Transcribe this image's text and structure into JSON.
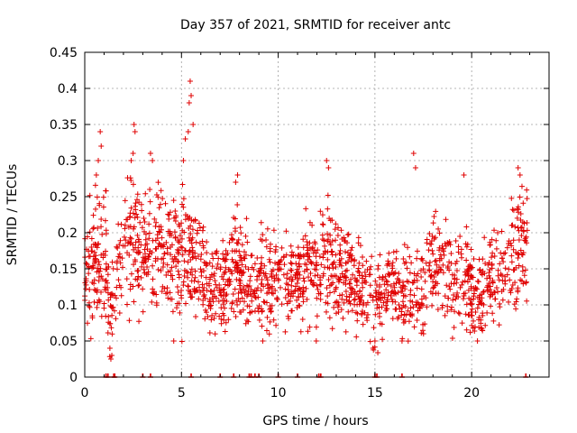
{
  "chart_data": {
    "type": "scatter",
    "title": "Day 357 of 2021, SRMTID for receiver antc",
    "xlabel": "GPS time / hours",
    "ylabel": "SRMTID / TECUs",
    "xlim": [
      0,
      24
    ],
    "ylim": [
      0,
      0.45
    ],
    "x_ticks": [
      0,
      5,
      10,
      15,
      20
    ],
    "x_tick_labels": [
      "0",
      "5",
      "10",
      "15",
      "20"
    ],
    "y_ticks": [
      0,
      0.05,
      0.1,
      0.15,
      0.2,
      0.25,
      0.3,
      0.35,
      0.4,
      0.45
    ],
    "y_tick_labels": [
      "0",
      "0.05",
      "0.1",
      "0.15",
      "0.2",
      "0.25",
      "0.3",
      "0.35",
      "0.4",
      "0.45"
    ],
    "grid": true,
    "marker": "+",
    "color": "#e00000",
    "envelope": {
      "x": [
        0,
        0.5,
        1.0,
        1.3,
        1.6,
        2.0,
        2.5,
        3.0,
        3.5,
        4.0,
        4.5,
        5.0,
        5.5,
        6.0,
        6.5,
        7.0,
        7.5,
        8.0,
        8.5,
        9.0,
        9.5,
        10.0,
        10.5,
        11.0,
        11.5,
        12.0,
        12.5,
        13.0,
        13.5,
        14.0,
        14.5,
        15.0,
        15.5,
        16.0,
        16.5,
        17.0,
        17.5,
        18.0,
        18.5,
        19.0,
        19.5,
        20.0,
        20.5,
        21.0,
        21.5,
        22.0,
        22.5,
        22.9
      ],
      "mean": [
        0.14,
        0.16,
        0.17,
        0.08,
        0.13,
        0.16,
        0.19,
        0.18,
        0.17,
        0.18,
        0.16,
        0.18,
        0.17,
        0.14,
        0.12,
        0.12,
        0.14,
        0.15,
        0.13,
        0.14,
        0.13,
        0.15,
        0.13,
        0.13,
        0.15,
        0.14,
        0.16,
        0.15,
        0.14,
        0.13,
        0.12,
        0.1,
        0.12,
        0.13,
        0.11,
        0.12,
        0.13,
        0.17,
        0.16,
        0.13,
        0.14,
        0.12,
        0.11,
        0.14,
        0.15,
        0.16,
        0.19,
        0.18
      ],
      "spread": [
        0.05,
        0.06,
        0.08,
        0.04,
        0.05,
        0.06,
        0.07,
        0.06,
        0.06,
        0.06,
        0.06,
        0.08,
        0.06,
        0.05,
        0.04,
        0.04,
        0.05,
        0.05,
        0.05,
        0.05,
        0.05,
        0.05,
        0.04,
        0.04,
        0.05,
        0.05,
        0.06,
        0.05,
        0.05,
        0.04,
        0.04,
        0.04,
        0.04,
        0.04,
        0.04,
        0.04,
        0.05,
        0.06,
        0.05,
        0.05,
        0.05,
        0.04,
        0.04,
        0.05,
        0.05,
        0.05,
        0.06,
        0.05
      ]
    },
    "outliers": [
      {
        "x": 0.6,
        "y": 0.28
      },
      {
        "x": 0.7,
        "y": 0.3
      },
      {
        "x": 0.8,
        "y": 0.34
      },
      {
        "x": 0.85,
        "y": 0.32
      },
      {
        "x": 2.4,
        "y": 0.3
      },
      {
        "x": 2.5,
        "y": 0.31
      },
      {
        "x": 2.6,
        "y": 0.34
      },
      {
        "x": 2.55,
        "y": 0.35
      },
      {
        "x": 3.4,
        "y": 0.31
      },
      {
        "x": 3.5,
        "y": 0.3
      },
      {
        "x": 5.1,
        "y": 0.3
      },
      {
        "x": 5.2,
        "y": 0.33
      },
      {
        "x": 5.4,
        "y": 0.38
      },
      {
        "x": 5.45,
        "y": 0.41
      },
      {
        "x": 5.5,
        "y": 0.39
      },
      {
        "x": 5.35,
        "y": 0.34
      },
      {
        "x": 5.6,
        "y": 0.35
      },
      {
        "x": 7.8,
        "y": 0.27
      },
      {
        "x": 7.9,
        "y": 0.28
      },
      {
        "x": 12.5,
        "y": 0.3
      },
      {
        "x": 12.6,
        "y": 0.29
      },
      {
        "x": 17.0,
        "y": 0.31
      },
      {
        "x": 17.1,
        "y": 0.29
      },
      {
        "x": 19.6,
        "y": 0.28
      },
      {
        "x": 22.4,
        "y": 0.29
      },
      {
        "x": 22.5,
        "y": 0.28
      },
      {
        "x": 1.3,
        "y": 0.04
      },
      {
        "x": 1.35,
        "y": 0.025
      },
      {
        "x": 1.4,
        "y": 0.03
      },
      {
        "x": 4.6,
        "y": 0.05
      },
      {
        "x": 9.2,
        "y": 0.05
      },
      {
        "x": 14.9,
        "y": 0.04
      },
      {
        "x": 15.0,
        "y": 0.05
      },
      {
        "x": 16.4,
        "y": 0.05
      },
      {
        "x": 20.3,
        "y": 0.05
      }
    ],
    "zero_markers_x": [
      1.1,
      1.2,
      1.5,
      1.55,
      3.0,
      3.4,
      5.5,
      7.0,
      7.7,
      8.5,
      8.6,
      8.8,
      9.0,
      10.0,
      11.0,
      12.1,
      12.2,
      15.0,
      15.1,
      16.4,
      22.8
    ]
  }
}
